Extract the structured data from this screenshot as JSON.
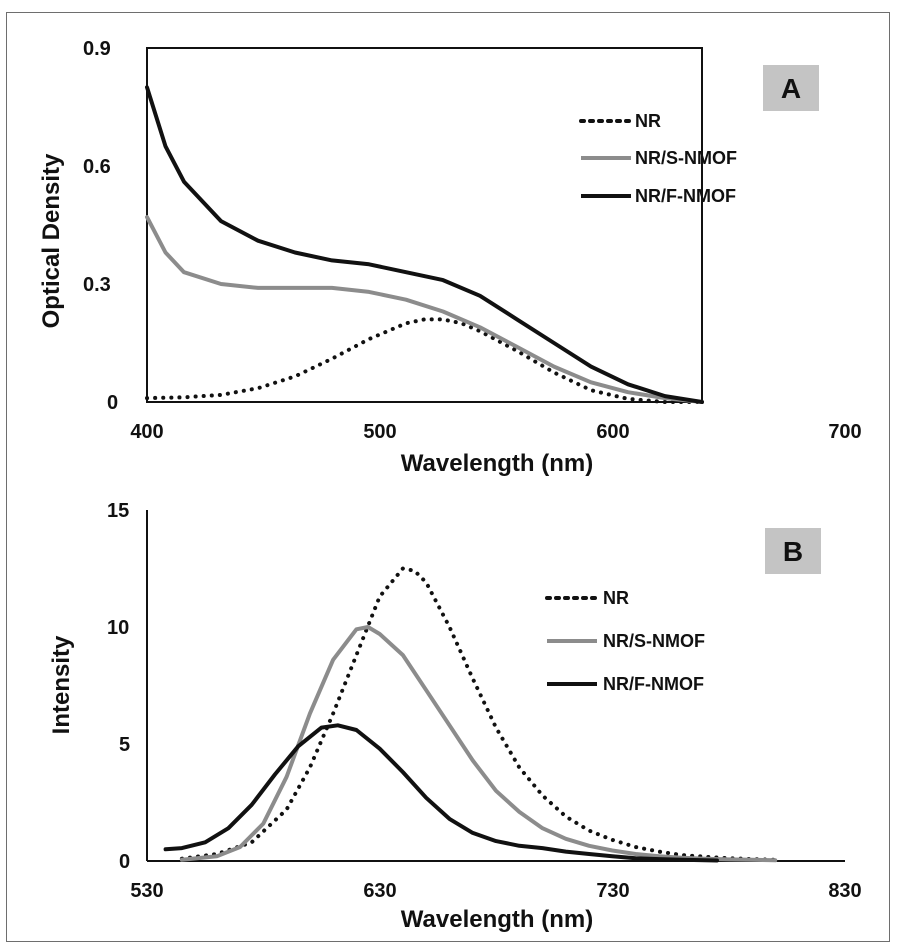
{
  "colors": {
    "frame": "#6e6e6e",
    "axis": "#111111",
    "series_nr": "#111111",
    "series_s": "#8c8c8c",
    "series_f": "#111111",
    "tag_bg": "#c4c4c4"
  },
  "chart_data": [
    {
      "type": "line",
      "panel_label": "A",
      "xlabel": "Wavelength (nm)",
      "ylabel": "Optical Density",
      "xlim": [
        400,
        700
      ],
      "ylim": [
        0,
        0.9
      ],
      "xticks": [
        "400",
        "500",
        "600",
        "700"
      ],
      "yticks": [
        "0",
        "0.3",
        "0.6",
        "0.9"
      ],
      "grid": false,
      "legend_position": "top-right",
      "series": [
        {
          "name": "NR",
          "style": "dotted",
          "color": "#111111",
          "x": [
            400,
            420,
            440,
            460,
            480,
            500,
            520,
            540,
            550,
            560,
            570,
            580,
            600,
            620,
            640,
            660,
            680,
            700
          ],
          "y": [
            0.01,
            0.012,
            0.018,
            0.035,
            0.065,
            0.11,
            0.16,
            0.2,
            0.21,
            0.21,
            0.2,
            0.18,
            0.13,
            0.075,
            0.03,
            0.008,
            0.0,
            0.0
          ]
        },
        {
          "name": "NR/S-NMOF",
          "style": "solid",
          "color": "#8c8c8c",
          "x": [
            400,
            410,
            420,
            440,
            460,
            480,
            500,
            520,
            540,
            560,
            580,
            600,
            620,
            640,
            660,
            680,
            700
          ],
          "y": [
            0.47,
            0.38,
            0.33,
            0.3,
            0.29,
            0.29,
            0.29,
            0.28,
            0.26,
            0.23,
            0.19,
            0.14,
            0.09,
            0.05,
            0.025,
            0.01,
            0.0
          ]
        },
        {
          "name": "NR/F-NMOF",
          "style": "solid",
          "color": "#111111",
          "x": [
            400,
            410,
            420,
            440,
            460,
            480,
            500,
            520,
            540,
            560,
            580,
            600,
            620,
            640,
            660,
            680,
            700
          ],
          "y": [
            0.8,
            0.65,
            0.56,
            0.46,
            0.41,
            0.38,
            0.36,
            0.35,
            0.33,
            0.31,
            0.27,
            0.21,
            0.15,
            0.09,
            0.045,
            0.015,
            0.0
          ]
        }
      ]
    },
    {
      "type": "line",
      "panel_label": "B",
      "xlabel": "Wavelength (nm)",
      "ylabel": "Intensity",
      "xlim": [
        530,
        830
      ],
      "ylim": [
        0,
        15
      ],
      "xticks": [
        "530",
        "630",
        "730",
        "830"
      ],
      "yticks": [
        "0",
        "5",
        "10",
        "15"
      ],
      "grid": false,
      "legend_position": "top-right",
      "series": [
        {
          "name": "NR",
          "style": "dotted",
          "color": "#111111",
          "x": [
            545,
            560,
            575,
            590,
            600,
            610,
            620,
            630,
            640,
            645,
            650,
            660,
            670,
            680,
            690,
            700,
            710,
            720,
            730,
            740,
            750,
            760,
            770,
            780,
            790,
            800
          ],
          "y": [
            0.1,
            0.3,
            0.8,
            2.2,
            4.0,
            6.3,
            8.8,
            11.3,
            12.5,
            12.4,
            11.9,
            10.0,
            7.8,
            5.7,
            4.0,
            2.8,
            1.9,
            1.3,
            0.9,
            0.6,
            0.4,
            0.25,
            0.18,
            0.12,
            0.08,
            0.05
          ]
        },
        {
          "name": "NR/S-NMOF",
          "style": "solid",
          "color": "#8c8c8c",
          "x": [
            545,
            560,
            570,
            580,
            590,
            600,
            610,
            620,
            625,
            630,
            640,
            650,
            660,
            670,
            680,
            690,
            700,
            710,
            720,
            730,
            740,
            750,
            760,
            770,
            780,
            790,
            800
          ],
          "y": [
            0.05,
            0.2,
            0.6,
            1.6,
            3.6,
            6.3,
            8.6,
            9.9,
            10.0,
            9.7,
            8.8,
            7.3,
            5.8,
            4.3,
            3.0,
            2.1,
            1.4,
            0.95,
            0.65,
            0.45,
            0.3,
            0.2,
            0.14,
            0.1,
            0.07,
            0.05,
            0.03
          ]
        },
        {
          "name": "NR/F-NMOF",
          "style": "solid",
          "color": "#111111",
          "x": [
            538,
            545,
            555,
            565,
            575,
            585,
            595,
            605,
            612,
            620,
            630,
            640,
            650,
            660,
            670,
            680,
            690,
            700,
            710,
            720,
            730,
            740,
            750,
            760,
            770,
            775
          ],
          "y": [
            0.5,
            0.55,
            0.8,
            1.4,
            2.4,
            3.7,
            4.9,
            5.7,
            5.8,
            5.6,
            4.8,
            3.8,
            2.7,
            1.8,
            1.2,
            0.85,
            0.65,
            0.55,
            0.4,
            0.3,
            0.2,
            0.12,
            0.08,
            0.05,
            0.03,
            0.02
          ]
        }
      ]
    }
  ]
}
